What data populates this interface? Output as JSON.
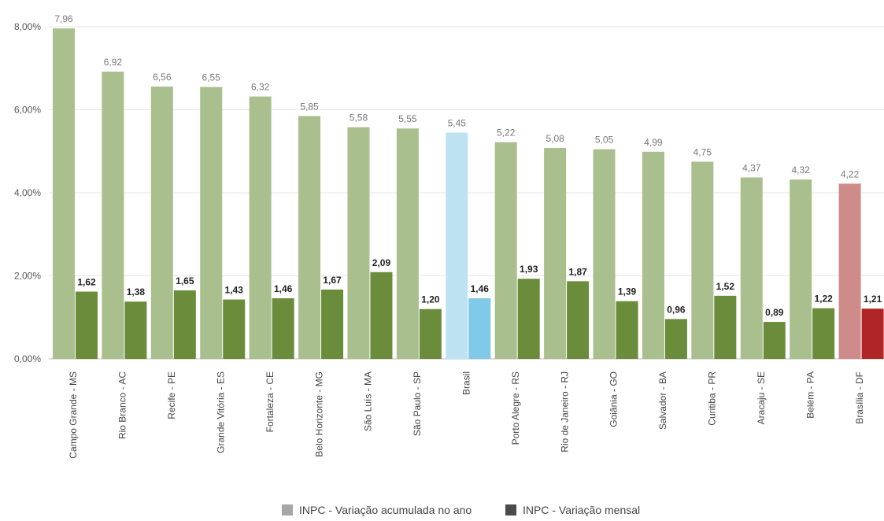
{
  "chart_data": {
    "type": "bar",
    "categories": [
      "Campo Grande - MS",
      "Rio Branco - AC",
      "Recife - PE",
      "Grande Vitória - ES",
      "Fortaleza - CE",
      "Belo Horizonte - MG",
      "São Luís - MA",
      "São Paulo - SP",
      "Brasil",
      "Porto Alegre - RS",
      "Rio de Janeiro - RJ",
      "Goiânia - GO",
      "Salvador - BA",
      "Curitiba - PR",
      "Aracaju - SE",
      "Belém - PA",
      "Brasília - DF"
    ],
    "series": [
      {
        "name": "INPC - Variação acumulada no ano",
        "values": [
          7.96,
          6.92,
          6.56,
          6.55,
          6.32,
          5.85,
          5.58,
          5.55,
          5.45,
          5.22,
          5.08,
          5.05,
          4.99,
          4.75,
          4.37,
          4.32,
          4.22
        ],
        "labels": [
          "7,96",
          "6,92",
          "6,56",
          "6,55",
          "6,32",
          "5,85",
          "5,58",
          "5,55",
          "5,45",
          "5,22",
          "5,08",
          "5,05",
          "4,99",
          "4,75",
          "4,37",
          "4,32",
          "4,22"
        ],
        "color": "#a9bf8e"
      },
      {
        "name": "INPC - Variação mensal",
        "values": [
          1.62,
          1.38,
          1.65,
          1.43,
          1.46,
          1.67,
          2.09,
          1.2,
          1.46,
          1.93,
          1.87,
          1.39,
          0.96,
          1.52,
          0.89,
          1.22,
          1.21
        ],
        "labels": [
          "1,62",
          "1,38",
          "1,65",
          "1,43",
          "1,46",
          "1,67",
          "2,09",
          "1,20",
          "1,46",
          "1,93",
          "1,87",
          "1,39",
          "0,96",
          "1,52",
          "0,89",
          "1,22",
          "1,21"
        ],
        "color": "#6b8c3a"
      }
    ],
    "highlight": {
      "Brasil": {
        "acc_color": "#bde3f3",
        "mon_color": "#80c9e8"
      },
      "Brasília - DF": {
        "acc_color": "#cf8a8a",
        "mon_color": "#b02626"
      }
    },
    "yticks": [
      "0,00%",
      "2,00%",
      "4,00%",
      "6,00%",
      "8,00%"
    ],
    "ytick_values": [
      0,
      2,
      4,
      6,
      8
    ],
    "ylim": [
      0,
      8
    ],
    "legend": {
      "placement": "bottom-center",
      "items": [
        {
          "label": "INPC - Variação acumulada no ano",
          "color": "#a6a6a6"
        },
        {
          "label": "INPC - Variação mensal",
          "color": "#4a4a4a"
        }
      ]
    },
    "grid": true
  }
}
